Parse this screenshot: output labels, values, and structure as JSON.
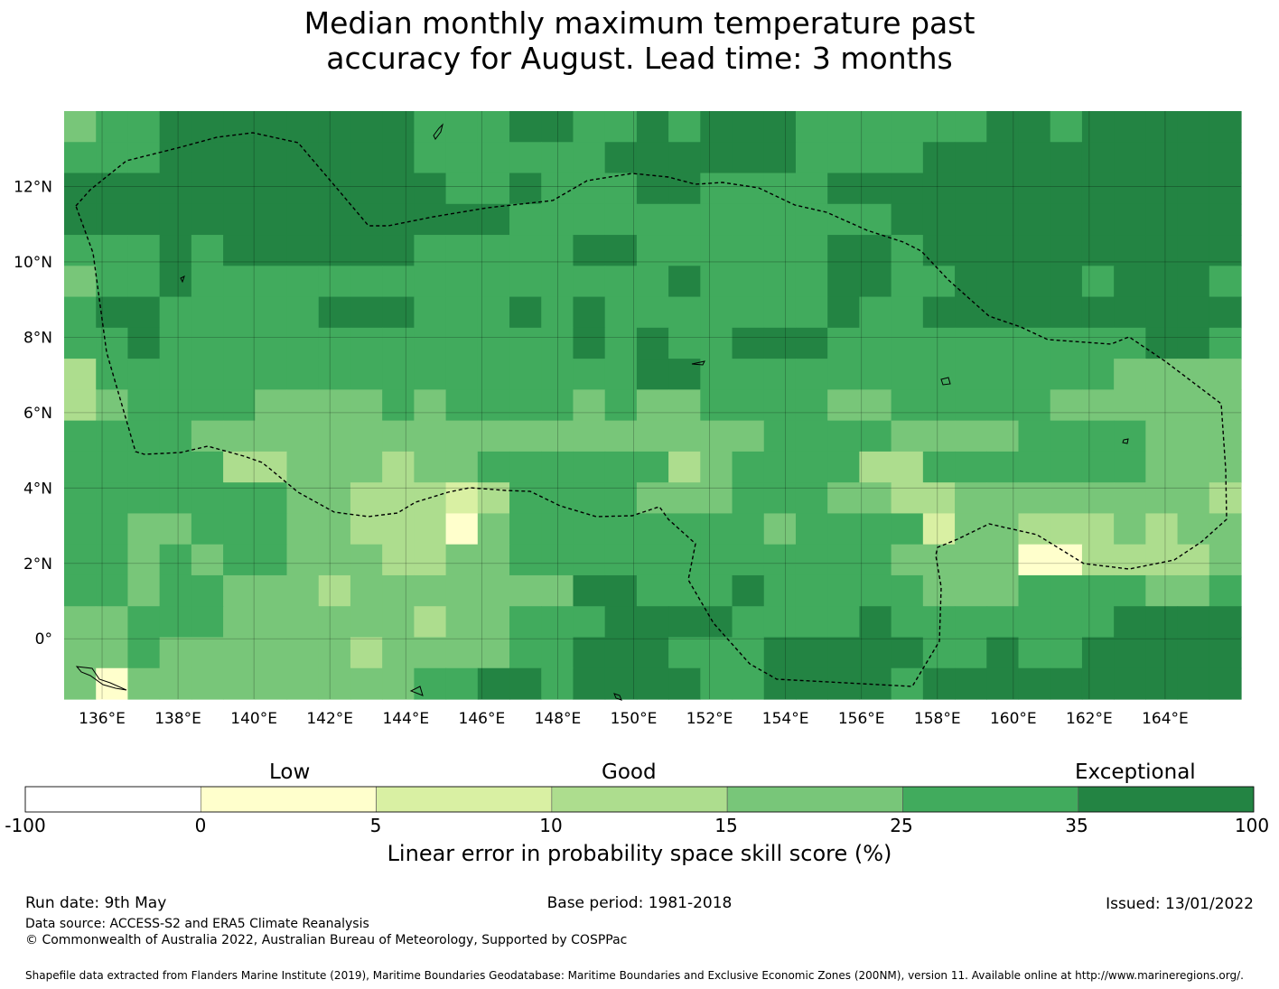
{
  "title": {
    "line1": "Median monthly maximum temperature past",
    "line2": "accuracy for August. Lead time: 3 months"
  },
  "map": {
    "lon_range": [
      135,
      166
    ],
    "lat_range": [
      -1.6,
      14
    ],
    "x_ticks": [
      "136°E",
      "138°E",
      "140°E",
      "142°E",
      "144°E",
      "146°E",
      "148°E",
      "150°E",
      "152°E",
      "154°E",
      "156°E",
      "158°E",
      "160°E",
      "162°E",
      "164°E"
    ],
    "y_ticks": [
      "12°N",
      "10°N",
      "8°N",
      "6°N",
      "4°N",
      "2°N",
      "0°"
    ],
    "grid": true
  },
  "colorbar": {
    "category_labels": [
      "Low",
      "Good",
      "Exceptional"
    ],
    "tick_labels": [
      "-100",
      "0",
      "5",
      "10",
      "15",
      "25",
      "35",
      "100"
    ],
    "colors": [
      "#ffffff",
      "#ffffcc",
      "#d9f0a3",
      "#addd8e",
      "#78c679",
      "#41ab5d",
      "#238443"
    ],
    "label": "Linear error in probability space skill score (%)"
  },
  "footer": {
    "run_date": "Run date: 9th May",
    "base_period": "Base period: 1981-2018",
    "issued": "Issued: 13/01/2022",
    "data_source": "Data source: ACCESS-S2 and ERA5 Climate Reanalysis",
    "copyright": "© Commonwealth of Australia 2022, Australian Bureau of Meteorology, Supported by COSPPac",
    "shapefile": "Shapefile data extracted from Flanders Marine Institute (2019), Maritime Boundaries Geodatabase: Maritime Boundaries and Exclusive Economic Zones (200NM), version 11. Available online at http://www.marineregions.org/."
  }
}
